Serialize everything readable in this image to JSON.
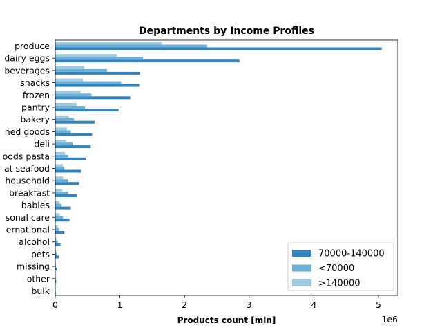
{
  "chart_data": {
    "type": "bar",
    "orientation": "horizontal",
    "title": "Departments by Income Profiles",
    "xlabel": "Products count [mln]",
    "ylabel": "",
    "x_offset_text": "1e6",
    "xlim": [
      0,
      5300000
    ],
    "xticks": [
      0,
      1000000,
      2000000,
      3000000,
      4000000,
      5000000
    ],
    "xtick_labels": [
      "0",
      "1",
      "2",
      "3",
      "4",
      "5"
    ],
    "categories": [
      "produce",
      "dairy eggs",
      "beverages",
      "snacks",
      "frozen",
      "pantry",
      "bakery",
      "canned goods",
      "deli",
      "dry goods pasta",
      "meat seafood",
      "household",
      "breakfast",
      "babies",
      "personal care",
      "international",
      "alcohol",
      "pets",
      "missing",
      "other",
      "bulk"
    ],
    "category_labels_visible": [
      "produce",
      "dairy eggs",
      "beverages",
      "snacks",
      "frozen",
      "pantry",
      "bakery",
      "ned goods",
      "deli",
      "oods pasta",
      "at seafood",
      "household",
      "breakfast",
      "babies",
      "sonal care",
      "ernational",
      "alcohol",
      "pets",
      "missing",
      "other",
      "bulk"
    ],
    "series": [
      {
        "name": "70000-140000",
        "color": "#3182bd",
        "values": [
          5050000,
          2850000,
          1310000,
          1300000,
          1160000,
          980000,
          610000,
          570000,
          550000,
          470000,
          400000,
          370000,
          340000,
          240000,
          220000,
          140000,
          80000,
          60000,
          25000,
          15000,
          8000
        ]
      },
      {
        "name": "<70000",
        "color": "#6baed6",
        "values": [
          2350000,
          1360000,
          800000,
          1020000,
          560000,
          460000,
          290000,
          240000,
          270000,
          200000,
          140000,
          200000,
          200000,
          95000,
          120000,
          60000,
          40000,
          25000,
          12000,
          8000,
          4000
        ]
      },
      {
        "name": ">140000",
        "color": "#9ecae1",
        "values": [
          1650000,
          950000,
          450000,
          430000,
          390000,
          330000,
          210000,
          180000,
          170000,
          150000,
          120000,
          120000,
          110000,
          65000,
          70000,
          40000,
          20000,
          15000,
          8000,
          5000,
          3000
        ]
      }
    ],
    "legend": {
      "position": "bottom-right",
      "entries": [
        "70000-140000",
        "<70000",
        ">140000"
      ]
    },
    "grid": false
  }
}
